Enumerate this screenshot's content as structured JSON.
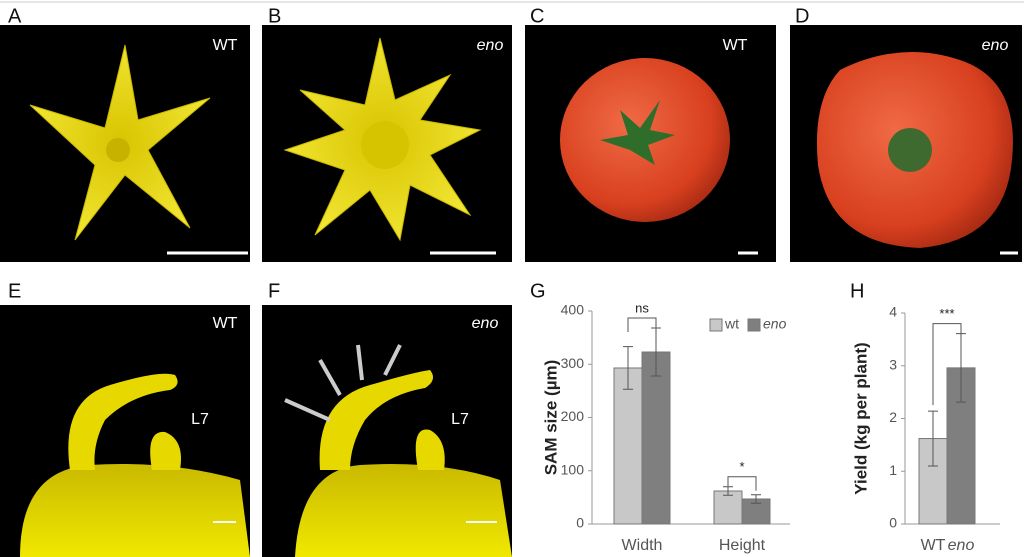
{
  "panels": [
    {
      "label": "A",
      "caption": "WT"
    },
    {
      "label": "B",
      "caption": "eno"
    },
    {
      "label": "C",
      "caption": "WT"
    },
    {
      "label": "D",
      "caption": "eno"
    },
    {
      "label": "E",
      "caption": "WT",
      "leaf": "L7"
    },
    {
      "label": "F",
      "caption": "eno",
      "leaf": "L7"
    }
  ],
  "chart_data": [
    {
      "type": "bar",
      "label": "G",
      "y_label": "SAM size (µm)",
      "categories": [
        "Width",
        "Height"
      ],
      "series": [
        {
          "name": "wt",
          "color": "#c8c8c8",
          "italic": false,
          "values": [
            293,
            62
          ],
          "errors": [
            40,
            8
          ]
        },
        {
          "name": "eno",
          "color": "#7f7f7f",
          "italic": true,
          "values": [
            323,
            47
          ],
          "errors": [
            45,
            8
          ]
        }
      ],
      "annotations": [
        "ns",
        "*"
      ],
      "ylim": [
        0,
        400
      ],
      "yticks": [
        0,
        100,
        200,
        300,
        400
      ],
      "legend": "top-right",
      "grid": false
    },
    {
      "type": "bar",
      "label": "H",
      "y_label": "Yield (kg per plant)",
      "categories": [
        "WT",
        "eno"
      ],
      "category_italic": [
        false,
        true
      ],
      "values": [
        1.62,
        2.96
      ],
      "errors": [
        0.52,
        0.65
      ],
      "colors": [
        "#c8c8c8",
        "#7f7f7f"
      ],
      "annotation": "***",
      "ylim": [
        0,
        4
      ],
      "yticks": [
        0,
        1,
        2,
        3,
        4
      ],
      "grid": false
    }
  ]
}
